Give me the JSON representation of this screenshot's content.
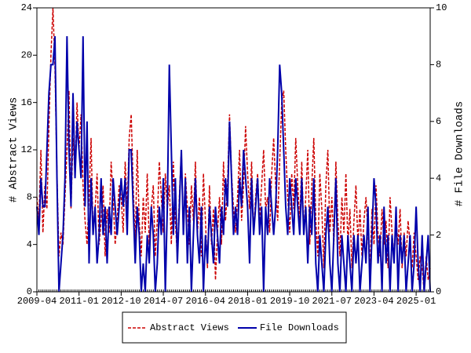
{
  "chart_data": {
    "type": "line",
    "y_label": "# Abstract Views",
    "y2_label": "# File Downloads",
    "x": [
      "2009-04",
      "2009-05",
      "2009-06",
      "2009-07",
      "2009-08",
      "2009-09",
      "2009-10",
      "2009-11",
      "2009-12",
      "2010-01",
      "2010-02",
      "2010-03",
      "2010-04",
      "2010-05",
      "2010-06",
      "2010-07",
      "2010-08",
      "2010-09",
      "2010-10",
      "2010-11",
      "2010-12",
      "2011-01",
      "2011-02",
      "2011-03",
      "2011-04",
      "2011-05",
      "2011-06",
      "2011-07",
      "2011-08",
      "2011-09",
      "2011-10",
      "2011-11",
      "2011-12",
      "2012-01",
      "2012-02",
      "2012-03",
      "2012-04",
      "2012-05",
      "2012-06",
      "2012-07",
      "2012-08",
      "2012-09",
      "2012-10",
      "2012-11",
      "2012-12",
      "2013-01",
      "2013-02",
      "2013-03",
      "2013-04",
      "2013-05",
      "2013-06",
      "2013-07",
      "2013-08",
      "2013-09",
      "2013-10",
      "2013-11",
      "2013-12",
      "2014-01",
      "2014-02",
      "2014-03",
      "2014-04",
      "2014-05",
      "2014-06",
      "2014-07",
      "2014-08",
      "2014-09",
      "2014-10",
      "2014-11",
      "2014-12",
      "2015-01",
      "2015-02",
      "2015-03",
      "2015-04",
      "2015-05",
      "2015-06",
      "2015-07",
      "2015-08",
      "2015-09",
      "2015-10",
      "2015-11",
      "2015-12",
      "2016-01",
      "2016-02",
      "2016-03",
      "2016-04",
      "2016-05",
      "2016-06",
      "2016-07",
      "2016-08",
      "2016-09",
      "2016-10",
      "2016-11",
      "2016-12",
      "2017-01",
      "2017-02",
      "2017-03",
      "2017-04",
      "2017-05",
      "2017-06",
      "2017-07",
      "2017-08",
      "2017-09",
      "2017-10",
      "2017-11",
      "2017-12",
      "2018-01",
      "2018-02",
      "2018-03",
      "2018-04",
      "2018-05",
      "2018-06",
      "2018-07",
      "2018-08",
      "2018-09",
      "2018-10",
      "2018-11",
      "2018-12",
      "2019-01",
      "2019-02",
      "2019-03",
      "2019-04",
      "2019-05",
      "2019-06",
      "2019-07",
      "2019-08",
      "2019-09",
      "2019-10",
      "2019-11",
      "2019-12",
      "2020-01",
      "2020-02",
      "2020-03",
      "2020-04",
      "2020-05",
      "2020-06",
      "2020-07",
      "2020-08",
      "2020-09",
      "2020-10",
      "2020-11",
      "2020-12",
      "2021-01",
      "2021-02",
      "2021-03",
      "2021-04",
      "2021-05",
      "2021-06",
      "2021-07",
      "2021-08",
      "2021-09",
      "2021-10",
      "2021-11",
      "2021-12",
      "2022-01",
      "2022-02",
      "2022-03",
      "2022-04",
      "2022-05",
      "2022-06",
      "2022-07",
      "2022-08",
      "2022-09",
      "2022-10",
      "2022-11",
      "2022-12",
      "2023-01",
      "2023-02",
      "2023-03",
      "2023-04",
      "2023-05",
      "2023-06",
      "2023-07",
      "2023-08",
      "2023-09",
      "2023-10",
      "2023-11",
      "2023-12",
      "2024-01",
      "2024-02",
      "2024-03",
      "2024-04",
      "2024-05",
      "2024-06",
      "2024-07",
      "2024-08",
      "2024-09",
      "2024-10",
      "2024-11",
      "2024-12",
      "2025-01",
      "2025-02",
      "2025-03",
      "2025-04",
      "2025-05",
      "2025-06",
      "2025-07",
      "2025-08"
    ],
    "xticks": [
      "2009-04",
      "2011-01",
      "2012-10",
      "2014-07",
      "2016-04",
      "2018-01",
      "2019-10",
      "2021-07",
      "2023-04",
      "2025-01"
    ],
    "ylim": [
      0,
      24
    ],
    "yticks": [
      0,
      4,
      8,
      12,
      16,
      20,
      24
    ],
    "y2lim": [
      0,
      10
    ],
    "y2ticks": [
      0,
      2,
      4,
      6,
      8,
      10
    ],
    "series": [
      {
        "name": "Abstract Views",
        "color": "#cc0000",
        "dash": true,
        "values": [
          8,
          6,
          12,
          5,
          9,
          7,
          14,
          20,
          24,
          19,
          10,
          3,
          5,
          4,
          8,
          12,
          17,
          7,
          13,
          10,
          16,
          12,
          15,
          9,
          6,
          4,
          8,
          13,
          5,
          7,
          10,
          4,
          6,
          9,
          3,
          7,
          5,
          11,
          8,
          4,
          6,
          9,
          8,
          5,
          11,
          7,
          13,
          15,
          9,
          4,
          12,
          6,
          3,
          8,
          5,
          10,
          4,
          7,
          9,
          3,
          6,
          11,
          8,
          5,
          10,
          7,
          9,
          4,
          11,
          6,
          3,
          8,
          12,
          5,
          10,
          7,
          4,
          9,
          6,
          11,
          5,
          8,
          3,
          10,
          6,
          2,
          9,
          4,
          7,
          1,
          5,
          8,
          4,
          11,
          6,
          9,
          15,
          10,
          7,
          5,
          8,
          12,
          6,
          9,
          14,
          10,
          7,
          11,
          5,
          8,
          10,
          6,
          9,
          12,
          7,
          8,
          5,
          10,
          13,
          9,
          6,
          11,
          16,
          17,
          12,
          8,
          5,
          10,
          7,
          13,
          9,
          6,
          11,
          5,
          8,
          12,
          4,
          9,
          13,
          6,
          3,
          10,
          7,
          2,
          9,
          12,
          5,
          8,
          4,
          11,
          6,
          3,
          8,
          5,
          10,
          4,
          7,
          2,
          6,
          9,
          4,
          7,
          3,
          6,
          8,
          5,
          2,
          7,
          4,
          9,
          5,
          3,
          7,
          4,
          6,
          2,
          8,
          5,
          3,
          6,
          4,
          7,
          2,
          5,
          3,
          6,
          4,
          2,
          5,
          3,
          1,
          3,
          2,
          0,
          3,
          1,
          2
        ]
      },
      {
        "name": "File Downloads",
        "color": "#0000aa",
        "dash": false,
        "axis": "y2",
        "values": [
          3,
          2,
          4,
          3,
          3,
          5,
          7,
          8,
          8,
          9,
          4,
          0,
          1,
          2,
          4,
          9,
          5,
          3,
          7,
          4,
          6,
          5,
          4,
          9,
          3,
          6,
          1,
          4,
          2,
          3,
          1,
          2,
          4,
          2,
          3,
          1,
          3,
          2,
          4,
          3,
          2,
          3,
          4,
          3,
          4,
          2,
          5,
          5,
          3,
          1,
          3,
          2,
          0,
          1,
          0,
          2,
          1,
          3,
          2,
          0,
          1,
          3,
          2,
          4,
          0,
          3,
          8,
          5,
          2,
          4,
          1,
          3,
          5,
          2,
          4,
          1,
          3,
          0,
          2,
          4,
          2,
          1,
          3,
          0,
          2,
          1,
          3,
          2,
          1,
          3,
          2,
          1,
          3,
          2,
          4,
          3,
          6,
          4,
          2,
          3,
          2,
          4,
          3,
          5,
          4,
          3,
          1,
          4,
          2,
          3,
          4,
          2,
          3,
          0,
          3,
          2,
          4,
          3,
          2,
          3,
          5,
          8,
          7,
          5,
          3,
          2,
          4,
          3,
          2,
          4,
          3,
          2,
          4,
          2,
          3,
          1,
          3,
          2,
          4,
          1,
          0,
          2,
          1,
          0,
          2,
          3,
          1,
          0,
          2,
          4,
          1,
          0,
          2,
          1,
          0,
          2,
          1,
          0,
          2,
          1,
          2,
          0,
          1,
          2,
          1,
          3,
          0,
          2,
          4,
          3,
          1,
          2,
          0,
          3,
          1,
          2,
          0,
          2,
          1,
          3,
          0,
          2,
          1,
          2,
          0,
          1,
          2,
          0,
          1,
          3,
          1,
          0,
          2,
          0,
          1,
          2,
          0
        ]
      }
    ],
    "legend": "bottom"
  }
}
